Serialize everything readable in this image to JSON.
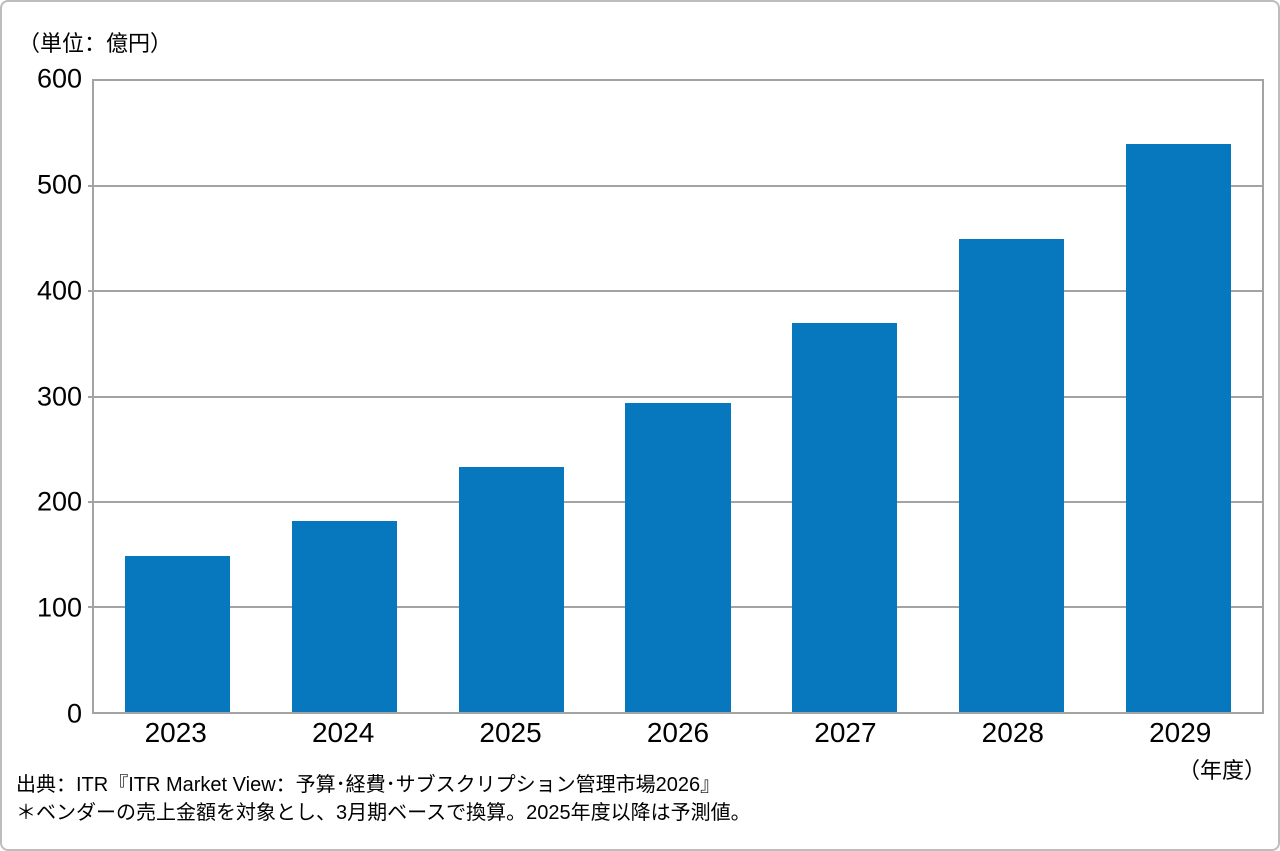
{
  "page": {
    "background": "#ffffff",
    "frame_border_color": "#bdbdbd"
  },
  "chart_data": {
    "type": "bar",
    "title": "",
    "unit_label": "（単位：億円）",
    "x_axis_unit": "（年度）",
    "categories": [
      "2023",
      "2024",
      "2025",
      "2026",
      "2027",
      "2028",
      "2029"
    ],
    "values": [
      148,
      182,
      233,
      294,
      370,
      450,
      540
    ],
    "xlabel": "年度",
    "ylabel": "億円",
    "ylim": [
      0,
      600
    ],
    "y_tick_step": 100,
    "y_ticks": [
      600,
      500,
      400,
      300,
      200,
      100,
      0
    ],
    "grid": true,
    "legend": "none",
    "bar_color": "#0878be",
    "gridline_color": "#a3a3a3"
  },
  "footer": {
    "source_line": "出典：ITR『ITR Market View：予算･経費･サブスクリプション管理市場2026』",
    "note_line": "＊ベンダーの売上金額を対象とし、3月期ベースで換算。2025年度以降は予測値。"
  }
}
